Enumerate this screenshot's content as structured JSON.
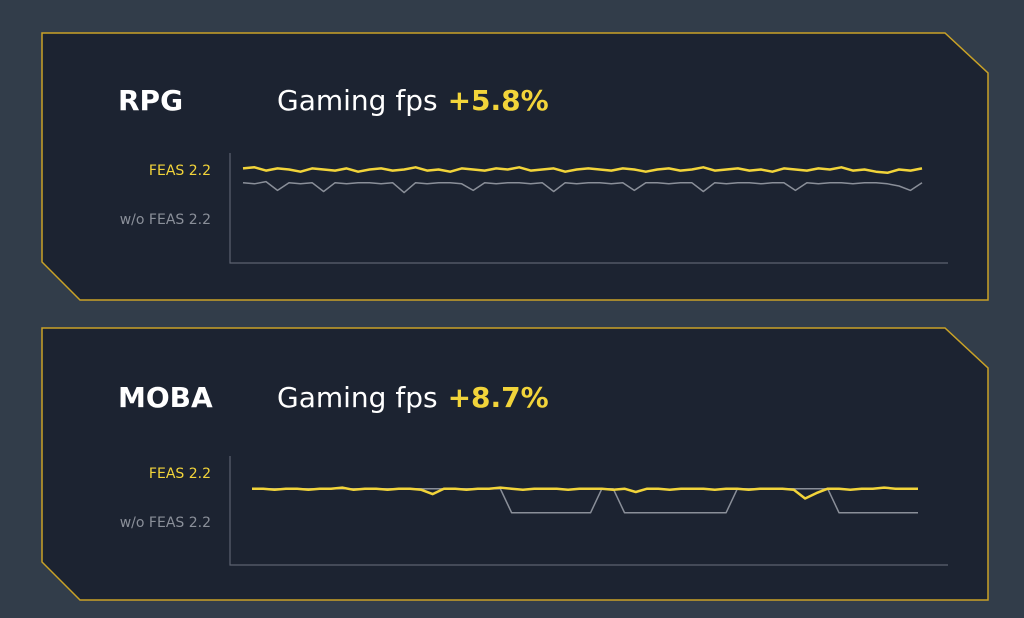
{
  "chart_data": [
    {
      "type": "line",
      "title": "RPG",
      "subtitle": "Gaming fps",
      "highlight": "+5.8%",
      "ylim": [
        0,
        100
      ],
      "series": [
        {
          "name": "FEAS 2.2",
          "color": "#f2d43a",
          "values": [
            86,
            87,
            84,
            86,
            85,
            83,
            86,
            85,
            84,
            86,
            83,
            85,
            86,
            84,
            85,
            87,
            84,
            85,
            83,
            86,
            85,
            84,
            86,
            85,
            87,
            84,
            85,
            86,
            83,
            85,
            86,
            85,
            84,
            86,
            85,
            83,
            85,
            86,
            84,
            85,
            87,
            84,
            85,
            86,
            84,
            85,
            83,
            86,
            85,
            84,
            86,
            85,
            87,
            84,
            85,
            83,
            82,
            85,
            84,
            86
          ]
        },
        {
          "name": "w/o FEAS 2.2",
          "color": "#8a8f99",
          "values": [
            73,
            72,
            74,
            66,
            73,
            72,
            73,
            65,
            73,
            72,
            73,
            73,
            72,
            73,
            64,
            73,
            72,
            73,
            73,
            72,
            66,
            73,
            72,
            73,
            73,
            72,
            73,
            65,
            73,
            72,
            73,
            73,
            72,
            73,
            66,
            73,
            73,
            72,
            73,
            73,
            65,
            73,
            72,
            73,
            73,
            72,
            73,
            73,
            66,
            73,
            72,
            73,
            73,
            72,
            73,
            73,
            72,
            70,
            66,
            73
          ]
        }
      ]
    },
    {
      "type": "line",
      "title": "MOBA",
      "subtitle": "Gaming fps",
      "highlight": "+8.7%",
      "ylim": [
        0,
        100
      ],
      "series": [
        {
          "name": "FEAS 2.2",
          "color": "#f2d43a",
          "values": [
            70,
            70,
            69,
            70,
            70,
            69,
            70,
            70,
            71,
            69,
            70,
            70,
            69,
            70,
            70,
            69,
            65,
            70,
            70,
            69,
            70,
            70,
            71,
            70,
            69,
            70,
            70,
            70,
            69,
            70,
            70,
            70,
            69,
            70,
            67,
            70,
            70,
            69,
            70,
            70,
            70,
            69,
            70,
            70,
            69,
            70,
            70,
            70,
            69,
            61,
            66,
            70,
            70,
            69,
            70,
            70,
            71,
            70,
            70,
            70
          ]
        },
        {
          "name": "w/o FEAS 2.2",
          "color": "#8a8f99",
          "values": [
            70,
            70,
            70,
            70,
            70,
            70,
            70,
            70,
            70,
            70,
            70,
            70,
            70,
            70,
            70,
            70,
            70,
            70,
            70,
            70,
            70,
            70,
            70,
            48,
            48,
            48,
            48,
            48,
            48,
            48,
            48,
            70,
            70,
            48,
            48,
            48,
            48,
            48,
            48,
            48,
            48,
            48,
            48,
            70,
            70,
            70,
            70,
            70,
            70,
            70,
            70,
            70,
            48,
            48,
            48,
            48,
            48,
            48,
            48,
            48
          ]
        }
      ]
    }
  ]
}
